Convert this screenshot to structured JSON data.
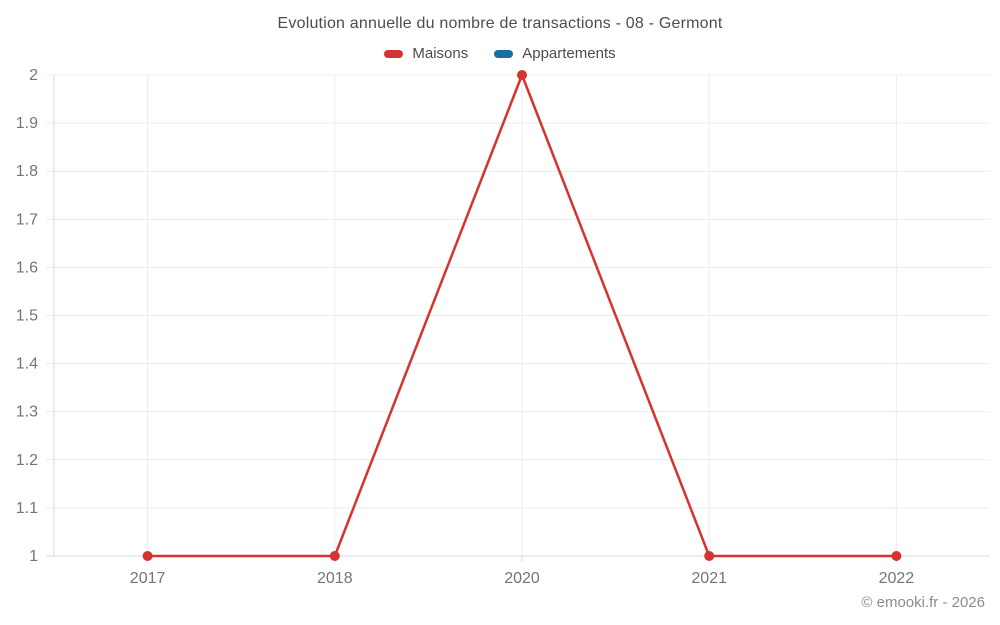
{
  "title": "Evolution annuelle du nombre de transactions - 08 - Germont",
  "legend": {
    "items": [
      {
        "label": "Maisons",
        "color": "#d63230"
      },
      {
        "label": "Appartements",
        "color": "#1c6ea5"
      }
    ]
  },
  "footer": {
    "copyright": "© emooki.fr - 2026"
  },
  "colors": {
    "grid": "#ececec",
    "axis": "#d9d9d9",
    "tick_text": "#757575",
    "title_text": "#4d4d4d"
  },
  "chart_data": {
    "type": "line",
    "title": "Evolution annuelle du nombre de transactions - 08 - Germont",
    "categories": [
      "2017",
      "2018",
      "2020",
      "2021",
      "2022"
    ],
    "series": [
      {
        "name": "Maisons",
        "color": "#d63230",
        "values": [
          1,
          1,
          2,
          1,
          1
        ]
      },
      {
        "name": "Appartements",
        "color": "#1c6ea5",
        "values": []
      }
    ],
    "xlabel": "",
    "ylabel": "",
    "ylim": [
      1,
      2
    ],
    "yticks": {
      "values": [
        2,
        1.9,
        1.8,
        1.7,
        1.6,
        1.5,
        1.4,
        1.3,
        1.2,
        1.1,
        1
      ],
      "labels": [
        "2",
        "1.9",
        "1.8",
        "1.7",
        "1.6",
        "1.5",
        "1.4",
        "1.3",
        "1.2",
        "1.1",
        "1"
      ]
    },
    "grid": "on",
    "legend_position": "top",
    "line_width": 2.5,
    "point_radius": 5
  }
}
